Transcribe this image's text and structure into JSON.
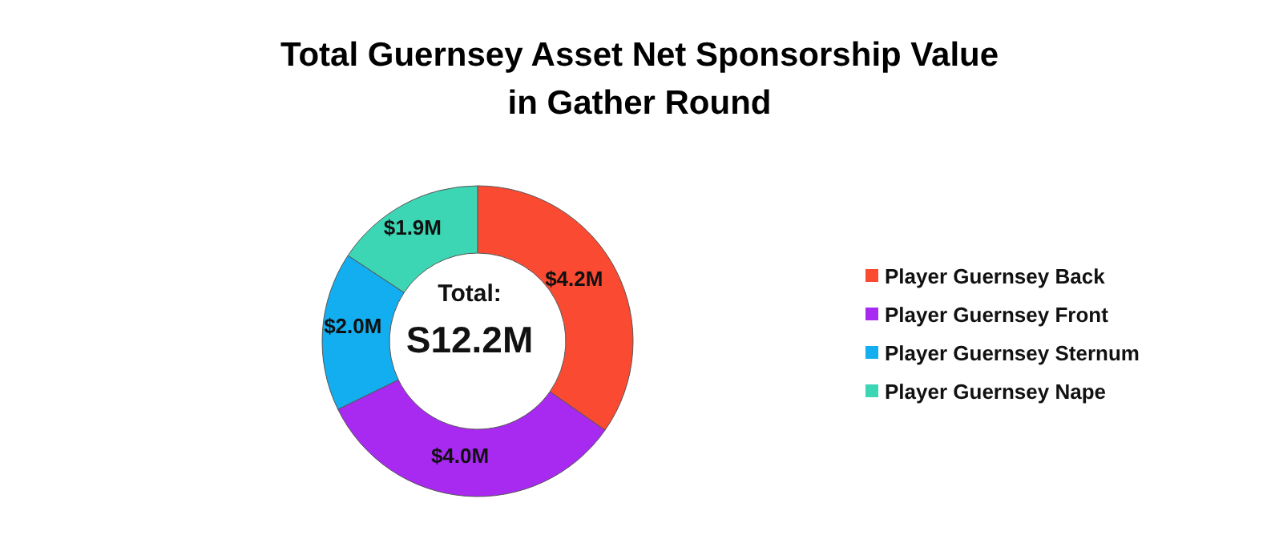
{
  "chart_data": {
    "type": "donut",
    "title": "Total Guernsey Asset Net Sponsorship Value\nin Gather Round",
    "categories": [
      "Player Guernsey Back",
      "Player Guernsey Front",
      "Player Guernsey Sternum",
      "Player Guernsey Nape"
    ],
    "values": [
      4.2,
      4.0,
      2.0,
      1.9
    ],
    "value_labels": [
      "$4.2M",
      "$4.0M",
      "$2.0M",
      "$1.9M"
    ],
    "colors": [
      "#fa4a32",
      "#a82af0",
      "#12aef0",
      "#3cd6b4"
    ],
    "annotations": [
      "Total:",
      "S12.2M"
    ],
    "legend": "right"
  }
}
